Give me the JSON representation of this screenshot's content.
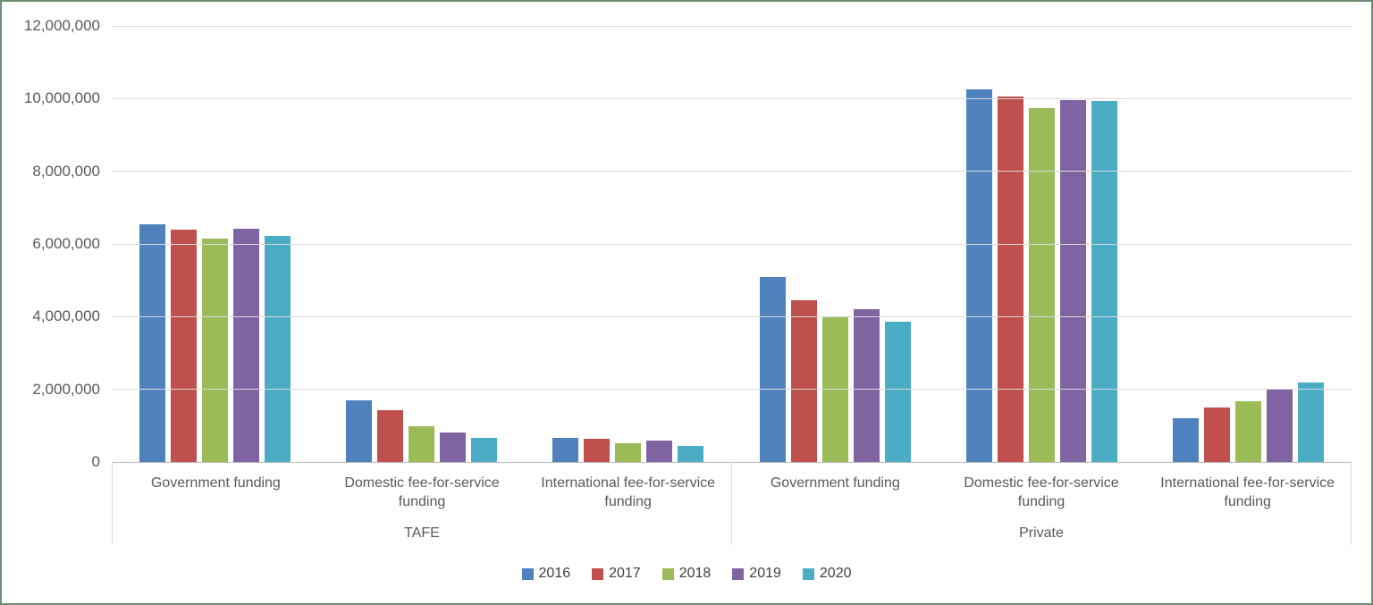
{
  "chart_data": {
    "type": "bar",
    "title": "",
    "grid": true,
    "legend_position": "bottom",
    "y_axis": {
      "min": 0,
      "max": 12000000,
      "step": 2000000,
      "ticks": [
        "12,000,000",
        "10,000,000",
        "8,000,000",
        "6,000,000",
        "4,000,000",
        "2,000,000",
        "0"
      ]
    },
    "groups": [
      {
        "label": "TAFE",
        "categories": [
          "Government funding",
          "Domestic fee-for-service funding",
          "International fee-for-service funding"
        ]
      },
      {
        "label": "Private",
        "categories": [
          "Government funding",
          "Domestic fee-for-service funding",
          "International fee-for-service funding"
        ]
      }
    ],
    "category_order_note": "values arrays run TAFE Government, TAFE Domestic, TAFE International, Private Government, Private Domestic, Private International",
    "series": [
      {
        "name": "2016",
        "color": "#4F81BD",
        "values": [
          6550000,
          1700000,
          670000,
          5080000,
          10250000,
          1200000
        ]
      },
      {
        "name": "2017",
        "color": "#C0504D",
        "values": [
          6390000,
          1420000,
          650000,
          4450000,
          10060000,
          1500000
        ]
      },
      {
        "name": "2018",
        "color": "#9BBB59",
        "values": [
          6150000,
          990000,
          520000,
          4020000,
          9730000,
          1670000
        ]
      },
      {
        "name": "2019",
        "color": "#8064A2",
        "values": [
          6410000,
          800000,
          600000,
          4210000,
          9960000,
          2000000
        ]
      },
      {
        "name": "2020",
        "color": "#4BACC6",
        "values": [
          6220000,
          660000,
          440000,
          3870000,
          9930000,
          2180000
        ]
      }
    ],
    "colors": {
      "gridline": "#D9D9D9",
      "axis_line": "#BFBFBF",
      "label_text": "#595959",
      "frame_border": "#6E8C73"
    }
  }
}
